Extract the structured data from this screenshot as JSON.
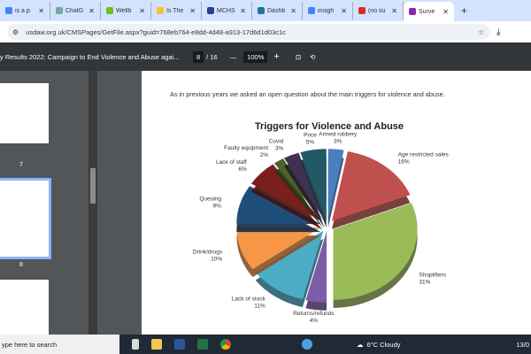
{
  "tabs": [
    {
      "title": "is a p",
      "color": "#4285f4"
    },
    {
      "title": "ChatG",
      "color": "#74aa9c"
    },
    {
      "title": "Wellb",
      "color": "#6bbf2a"
    },
    {
      "title": "Is The",
      "color": "#f8c030"
    },
    {
      "title": "MCHS",
      "color": "#2a3f8f"
    },
    {
      "title": "Dashb",
      "color": "#21759b"
    },
    {
      "title": "insigh",
      "color": "#4285f4"
    },
    {
      "title": "(no su",
      "color": "#d93025"
    },
    {
      "title": "Surve",
      "color": "#8e24aa",
      "active": true
    }
  ],
  "address": {
    "url": "usdaw.org.uk/CMSPages/GetFile.aspx?guid=768eb764-e8dd-4d48-a913-17d6d1d03c1c"
  },
  "pdf": {
    "title": "y Results 2022: Campaign to End Violence and Abuse agai...",
    "page": "8",
    "total": "/ 16",
    "zoom": "100%"
  },
  "thumbs": [
    {
      "num": "7"
    },
    {
      "num": "8"
    }
  ],
  "page_text": "As in previous years we asked an open question about the main triggers for violence and abuse.",
  "chart_data": {
    "type": "pie",
    "title": "Triggers for Violence and Abuse",
    "slices": [
      {
        "label": "Armed robbery",
        "value": 3,
        "color": "#4a7fc1"
      },
      {
        "label": "Age restricted sales",
        "value": 16,
        "color": "#c0504d"
      },
      {
        "label": "Shoplifters",
        "value": 31,
        "color": "#9bbb59"
      },
      {
        "label": "Returns/refunds",
        "value": 4,
        "color": "#7b5ea7"
      },
      {
        "label": "Lack of stock",
        "value": 11,
        "color": "#4bacc6"
      },
      {
        "label": "Drink/drugs",
        "value": 10,
        "color": "#f79646"
      },
      {
        "label": "Queuing",
        "value": 9,
        "color": "#1f4e79"
      },
      {
        "label": "Lack of staff",
        "value": 6,
        "color": "#7b1e1e"
      },
      {
        "label": "Faulty equipment",
        "value": 2,
        "color": "#4f6228"
      },
      {
        "label": "Covid",
        "value": 3,
        "color": "#3f3151"
      },
      {
        "label": "Price",
        "value": 5,
        "color": "#215967"
      }
    ]
  },
  "taskbar": {
    "search": "ype here to search",
    "weather": "6°C  Cloudy",
    "date": "13/0"
  }
}
